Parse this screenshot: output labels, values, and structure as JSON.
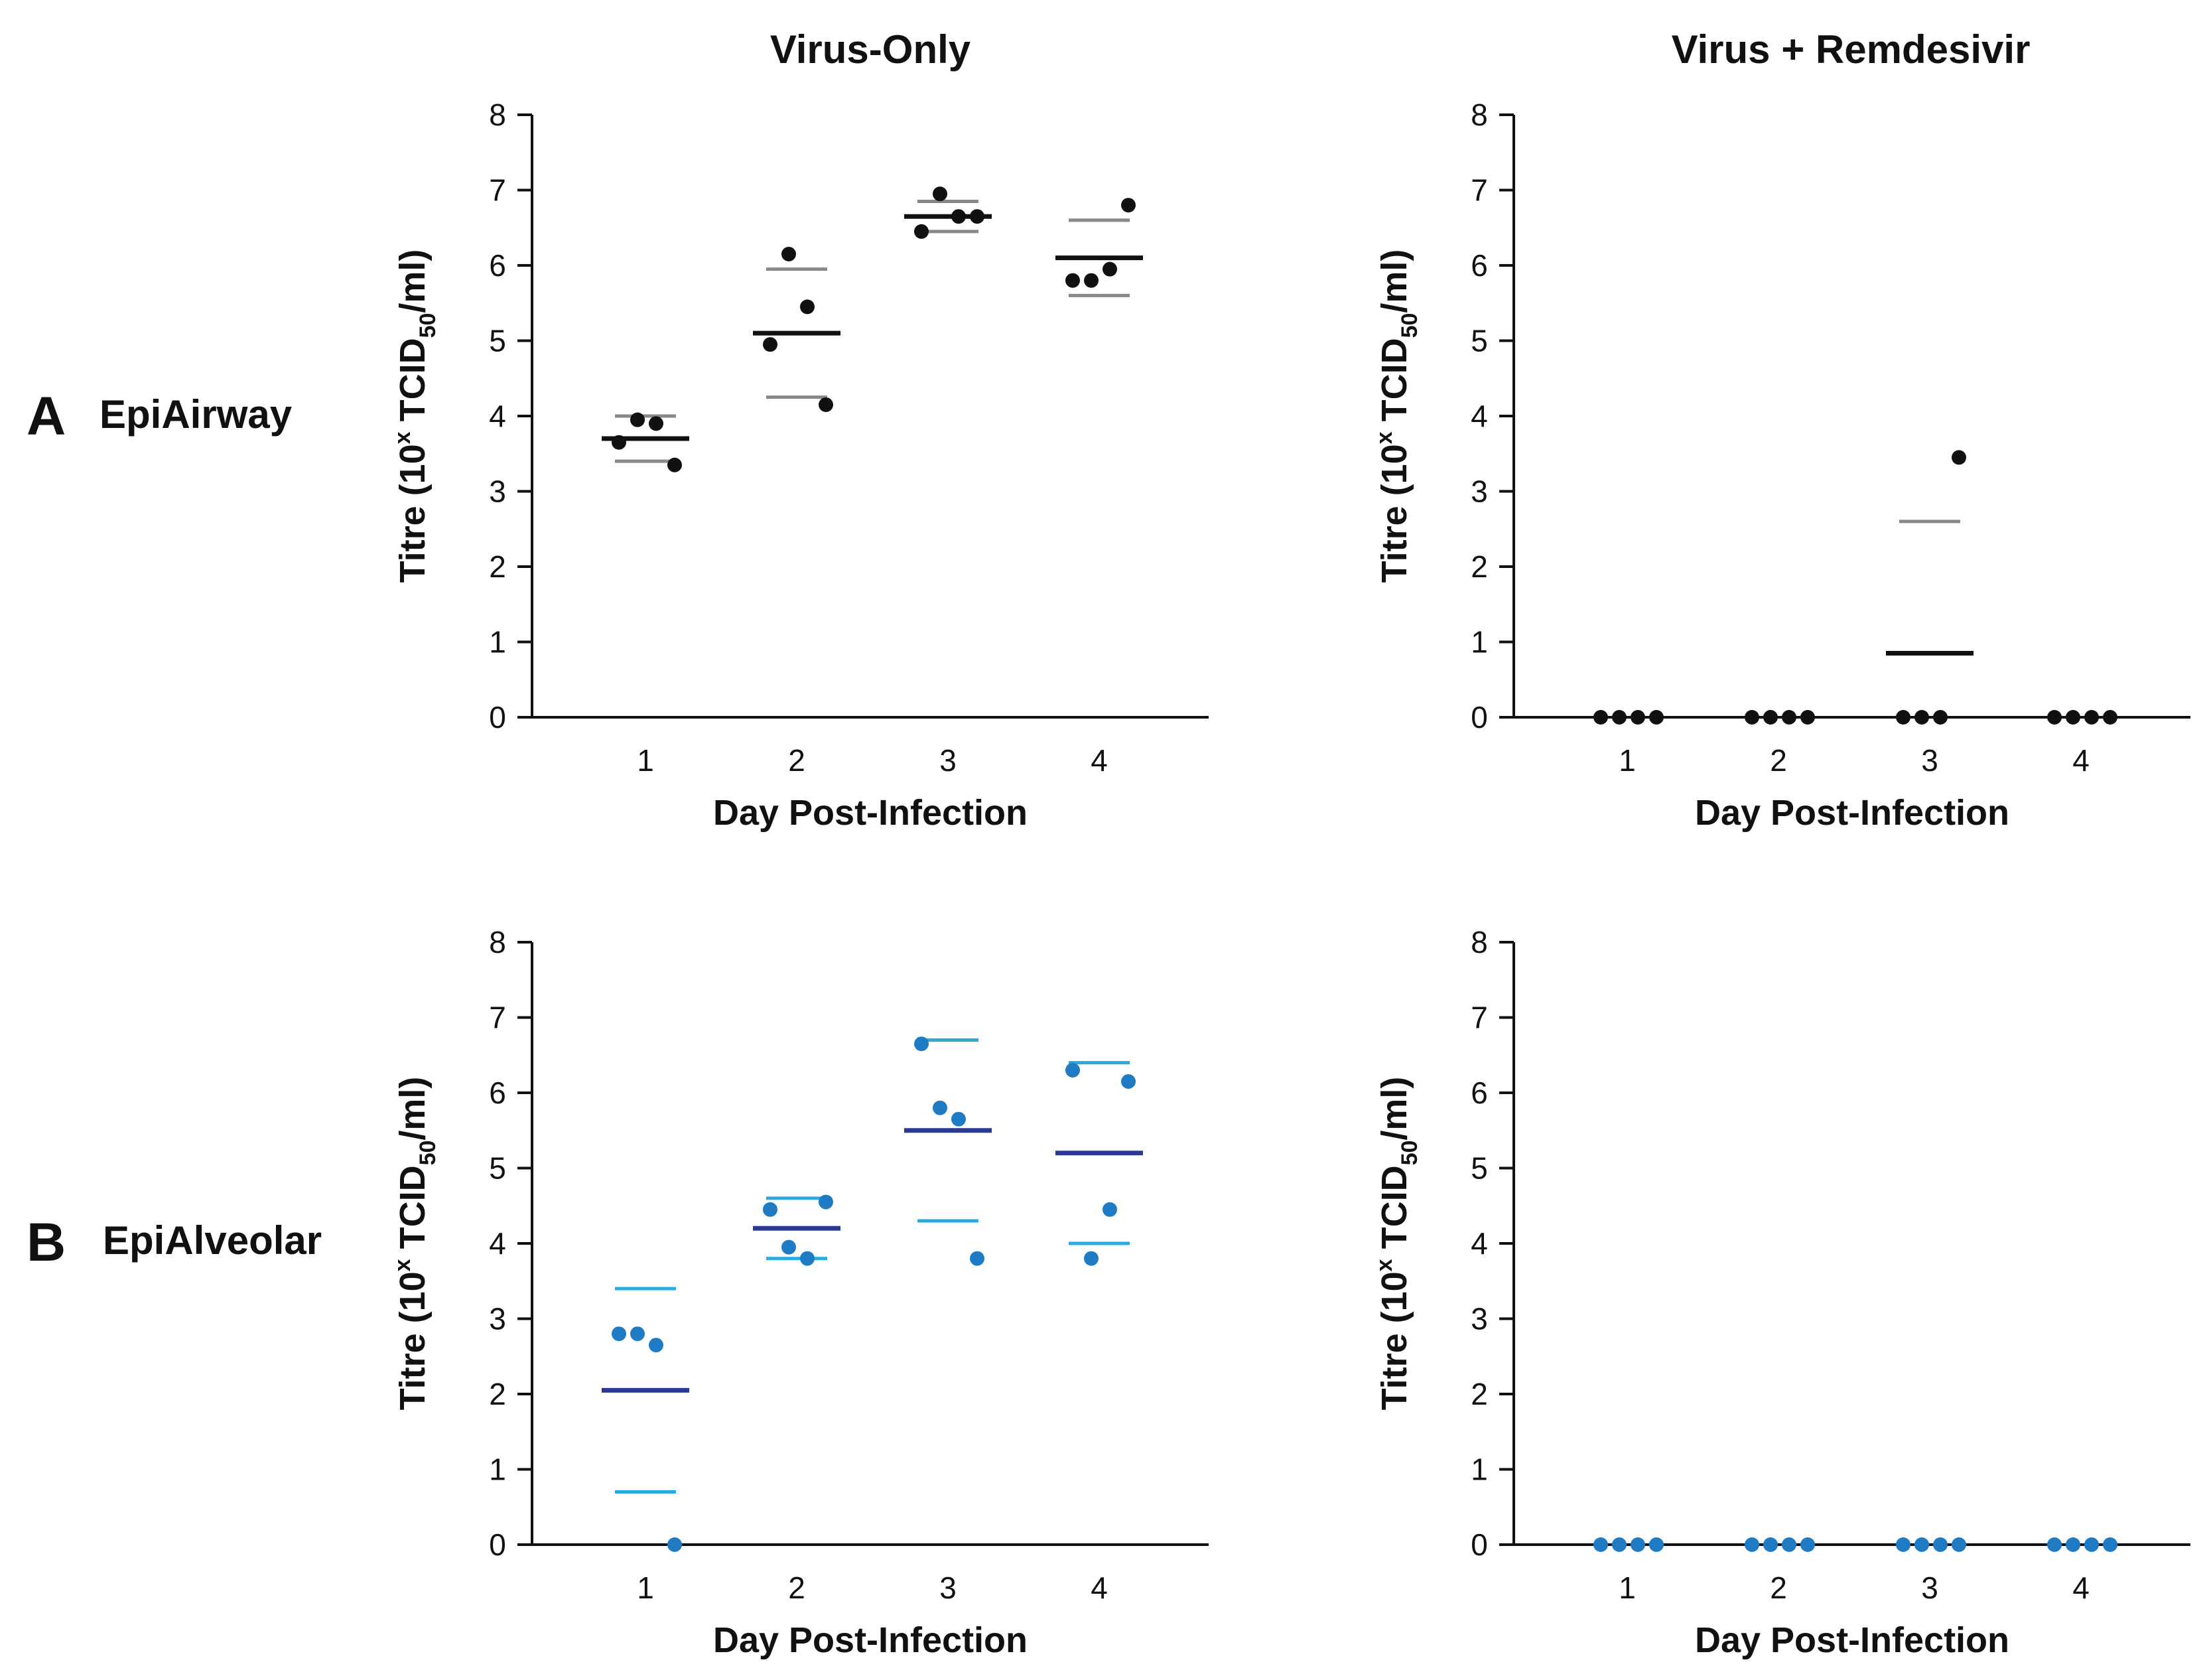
{
  "column_titles": [
    "Virus-Only",
    "Virus + Remdesivir"
  ],
  "rows": [
    {
      "letter": "A",
      "label": "EpiAirway"
    },
    {
      "letter": "B",
      "label": "EpiAlveolar"
    }
  ],
  "colors": {
    "airway_dot": "#111111",
    "airway_mean": "#111111",
    "airway_err": "#888888",
    "alveolar_dot": "#1f7cc4",
    "alveolar_mean": "#2b3990",
    "alveolar_err": "#29abe2",
    "axis": "#111111"
  },
  "chart_data": [
    {
      "id": "A-virus-only",
      "type": "scatter",
      "row": "A",
      "column": "Virus-Only",
      "style": "airway",
      "xlabel": "Day Post-Infection",
      "ylabel_parts": [
        "Titre (10",
        "x",
        " TCID",
        "50",
        "/ml)"
      ],
      "x_categories": [
        "1",
        "2",
        "3",
        "4"
      ],
      "y_ticks": [
        "0",
        "1",
        "2",
        "3",
        "4",
        "5",
        "6",
        "7",
        "8"
      ],
      "ylim": [
        0,
        8
      ],
      "points": [
        {
          "day": 1,
          "values": [
            3.65,
            3.95,
            3.9,
            3.35
          ]
        },
        {
          "day": 2,
          "values": [
            4.95,
            6.15,
            5.45,
            4.15
          ]
        },
        {
          "day": 3,
          "values": [
            6.45,
            6.95,
            6.65,
            6.65
          ]
        },
        {
          "day": 4,
          "values": [
            5.8,
            5.8,
            5.95,
            6.8
          ]
        }
      ],
      "mean": [
        3.7,
        5.1,
        6.65,
        6.1
      ],
      "err_upper": [
        4.0,
        5.95,
        6.85,
        6.6
      ],
      "err_lower": [
        3.4,
        4.25,
        6.45,
        5.6
      ]
    },
    {
      "id": "A-virus-remdesivir",
      "type": "scatter",
      "row": "A",
      "column": "Virus + Remdesivir",
      "style": "airway",
      "xlabel": "Day Post-Infection",
      "ylabel_parts": [
        "Titre (10",
        "x",
        " TCID",
        "50",
        "/ml)"
      ],
      "x_categories": [
        "1",
        "2",
        "3",
        "4"
      ],
      "y_ticks": [
        "0",
        "1",
        "2",
        "3",
        "4",
        "5",
        "6",
        "7",
        "8"
      ],
      "ylim": [
        0,
        8
      ],
      "points": [
        {
          "day": 1,
          "values": [
            0,
            0,
            0,
            0
          ]
        },
        {
          "day": 2,
          "values": [
            0,
            0,
            0,
            0
          ]
        },
        {
          "day": 3,
          "values": [
            0,
            0,
            0,
            3.45
          ]
        },
        {
          "day": 4,
          "values": [
            0,
            0,
            0,
            0
          ]
        }
      ],
      "mean": [
        null,
        null,
        0.85,
        null
      ],
      "err_upper": [
        null,
        null,
        2.6,
        null
      ],
      "err_lower": [
        null,
        null,
        null,
        null
      ]
    },
    {
      "id": "B-virus-only",
      "type": "scatter",
      "row": "B",
      "column": "Virus-Only",
      "style": "alveolar",
      "xlabel": "Day Post-Infection",
      "ylabel_parts": [
        "Titre (10",
        "x",
        " TCID",
        "50",
        "/ml)"
      ],
      "x_categories": [
        "1",
        "2",
        "3",
        "4"
      ],
      "y_ticks": [
        "0",
        "1",
        "2",
        "3",
        "4",
        "5",
        "6",
        "7",
        "8"
      ],
      "ylim": [
        0,
        8
      ],
      "points": [
        {
          "day": 1,
          "values": [
            2.8,
            2.8,
            2.65,
            0
          ]
        },
        {
          "day": 2,
          "values": [
            4.45,
            3.95,
            3.8,
            4.55
          ]
        },
        {
          "day": 3,
          "values": [
            6.65,
            5.8,
            5.65,
            3.8
          ]
        },
        {
          "day": 4,
          "values": [
            6.3,
            3.8,
            4.45,
            6.15
          ]
        }
      ],
      "mean": [
        2.05,
        4.2,
        5.5,
        5.2
      ],
      "err_upper": [
        3.4,
        4.6,
        6.7,
        6.4
      ],
      "err_lower": [
        0.7,
        3.8,
        4.3,
        4.0
      ]
    },
    {
      "id": "B-virus-remdesivir",
      "type": "scatter",
      "row": "B",
      "column": "Virus + Remdesivir",
      "style": "alveolar",
      "xlabel": "Day Post-Infection",
      "ylabel_parts": [
        "Titre (10",
        "x",
        " TCID",
        "50",
        "/ml)"
      ],
      "x_categories": [
        "1",
        "2",
        "3",
        "4"
      ],
      "y_ticks": [
        "0",
        "1",
        "2",
        "3",
        "4",
        "5",
        "6",
        "7",
        "8"
      ],
      "ylim": [
        0,
        8
      ],
      "points": [
        {
          "day": 1,
          "values": [
            0,
            0,
            0,
            0
          ]
        },
        {
          "day": 2,
          "values": [
            0,
            0,
            0,
            0
          ]
        },
        {
          "day": 3,
          "values": [
            0,
            0,
            0,
            0
          ]
        },
        {
          "day": 4,
          "values": [
            0,
            0,
            0,
            0
          ]
        }
      ],
      "mean": [
        null,
        null,
        null,
        null
      ],
      "err_upper": [
        null,
        null,
        null,
        null
      ],
      "err_lower": [
        null,
        null,
        null,
        null
      ]
    }
  ]
}
